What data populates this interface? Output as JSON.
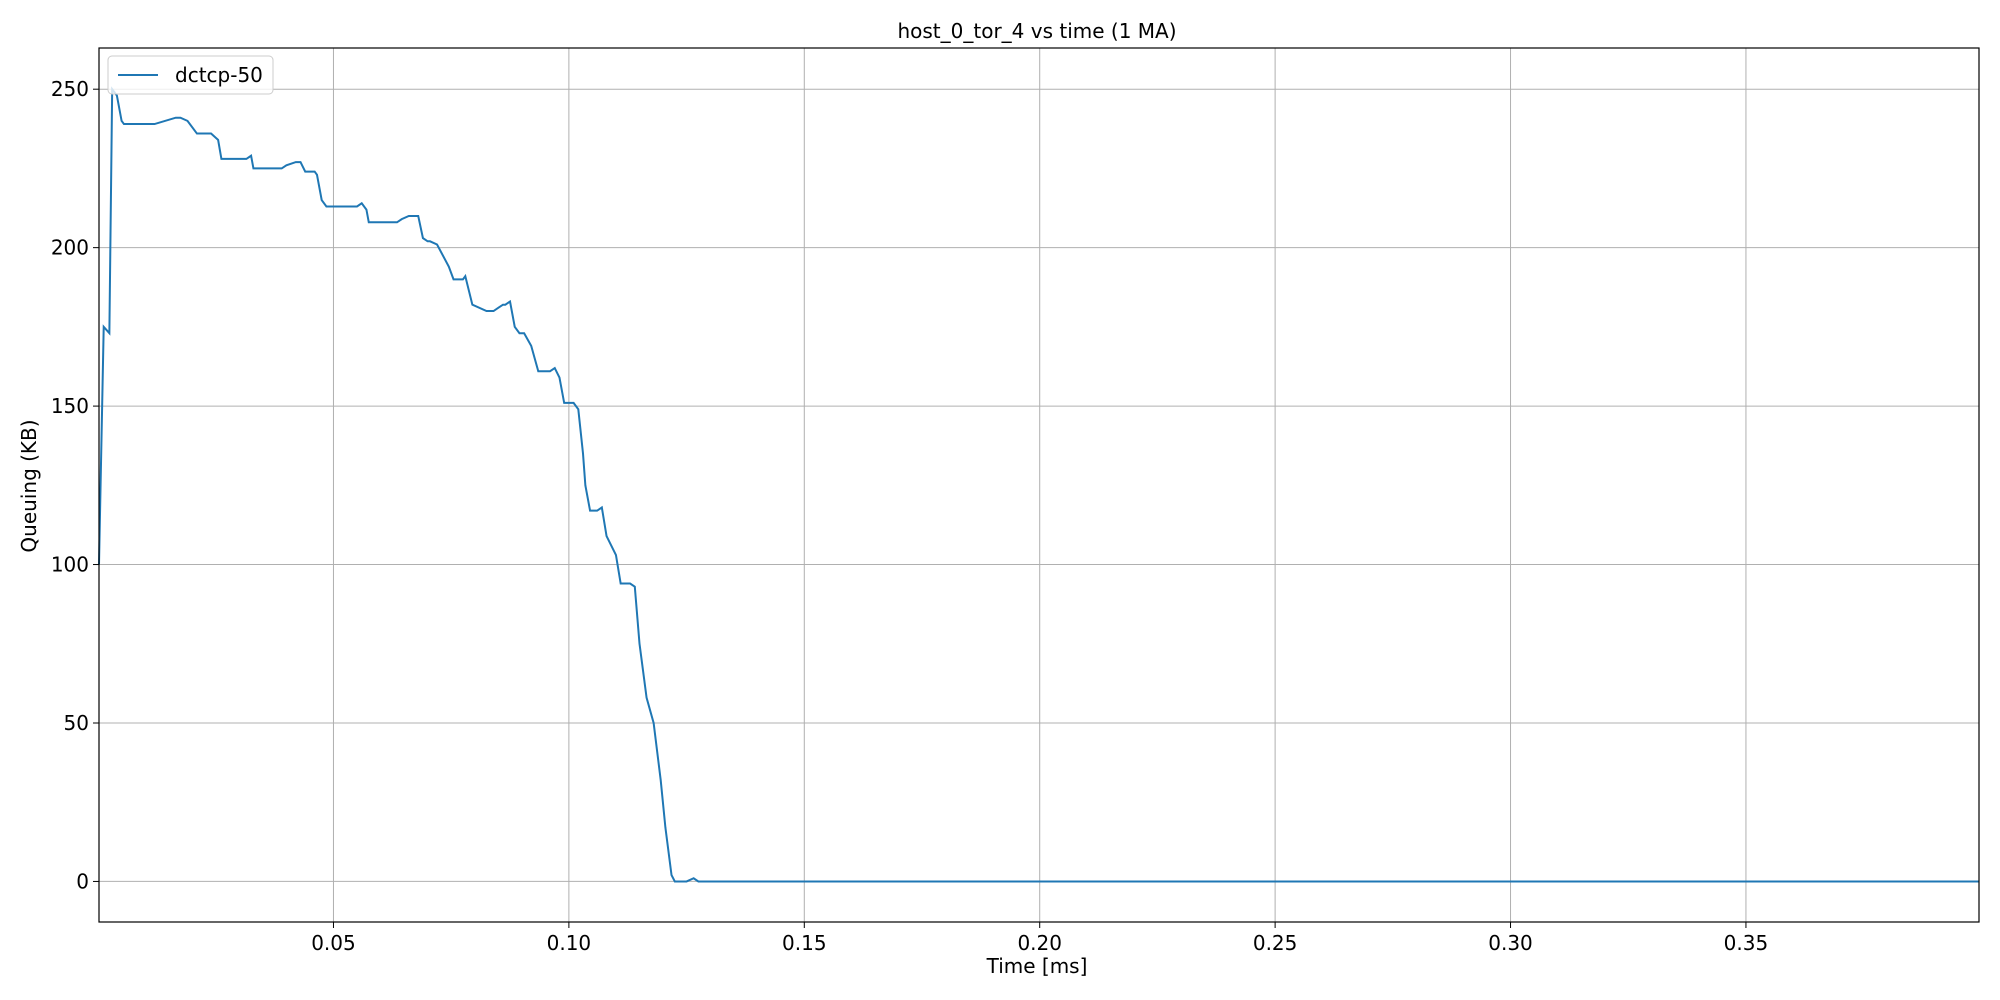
{
  "chart_data": {
    "type": "line",
    "title": "host_0_tor_4 vs time (1 MA)",
    "xlabel": "Time [ms]",
    "ylabel": "Queuing (KB)",
    "xlim": [
      0.0002,
      0.3995
    ],
    "ylim": [
      -12.8,
      263
    ],
    "x_ticks": [
      0.05,
      0.1,
      0.15,
      0.2,
      0.25,
      0.3,
      0.35
    ],
    "x_tick_labels": [
      "0.05",
      "0.10",
      "0.15",
      "0.20",
      "0.25",
      "0.30",
      "0.35"
    ],
    "y_ticks": [
      0,
      50,
      100,
      150,
      200,
      250
    ],
    "y_tick_labels": [
      "0",
      "50",
      "100",
      "150",
      "200",
      "250"
    ],
    "grid": true,
    "legend_position": "top-left",
    "series_color": "#1f77b4",
    "series": [
      {
        "name": "dctcp-50",
        "color": "#1f77b4",
        "x": [
          0.0002,
          0.0012,
          0.0024,
          0.003,
          0.004,
          0.005,
          0.0055,
          0.0065,
          0.01,
          0.012,
          0.0165,
          0.0175,
          0.019,
          0.021,
          0.0225,
          0.024,
          0.0255,
          0.0262,
          0.028,
          0.029,
          0.0315,
          0.0325,
          0.033,
          0.037,
          0.038,
          0.039,
          0.04,
          0.042,
          0.043,
          0.044,
          0.046,
          0.0465,
          0.0475,
          0.0485,
          0.05,
          0.055,
          0.056,
          0.057,
          0.0575,
          0.0595,
          0.0635,
          0.0645,
          0.066,
          0.0675,
          0.068,
          0.069,
          0.07,
          0.0705,
          0.072,
          0.0745,
          0.0755,
          0.0765,
          0.0775,
          0.078,
          0.0795,
          0.0825,
          0.0835,
          0.084,
          0.085,
          0.086,
          0.0865,
          0.0875,
          0.0885,
          0.0895,
          0.0905,
          0.092,
          0.0935,
          0.095,
          0.096,
          0.097,
          0.098,
          0.099,
          0.1,
          0.101,
          0.102,
          0.103,
          0.1035,
          0.1045,
          0.106,
          0.107,
          0.108,
          0.109,
          0.11,
          0.111,
          0.112,
          0.113,
          0.114,
          0.115,
          0.1165,
          0.118,
          0.1195,
          0.1205,
          0.1218,
          0.1225,
          0.1235,
          0.125,
          0.1265,
          0.1275,
          0.1295,
          0.3995
        ],
        "values": [
          100,
          175,
          173,
          250,
          248,
          240,
          239,
          239,
          239,
          239,
          241,
          241,
          240,
          236,
          236,
          236,
          234,
          228,
          228,
          228,
          228,
          229,
          225,
          225,
          225,
          225,
          226,
          227,
          227,
          224,
          224,
          223,
          215,
          213,
          213,
          213,
          214,
          212,
          208,
          208,
          208,
          209,
          210,
          210,
          210,
          203,
          202,
          202,
          201,
          194,
          190,
          190,
          190,
          191,
          182,
          180,
          180,
          180,
          181,
          182,
          182,
          183,
          175,
          173,
          173,
          169,
          161,
          161,
          161,
          162,
          159,
          151,
          151,
          151,
          149,
          135,
          125,
          117,
          117,
          118,
          109,
          106,
          103,
          94,
          94,
          94,
          93,
          75,
          58,
          50,
          32,
          17,
          2,
          0,
          0,
          0,
          1,
          0,
          0,
          0
        ]
      }
    ]
  }
}
